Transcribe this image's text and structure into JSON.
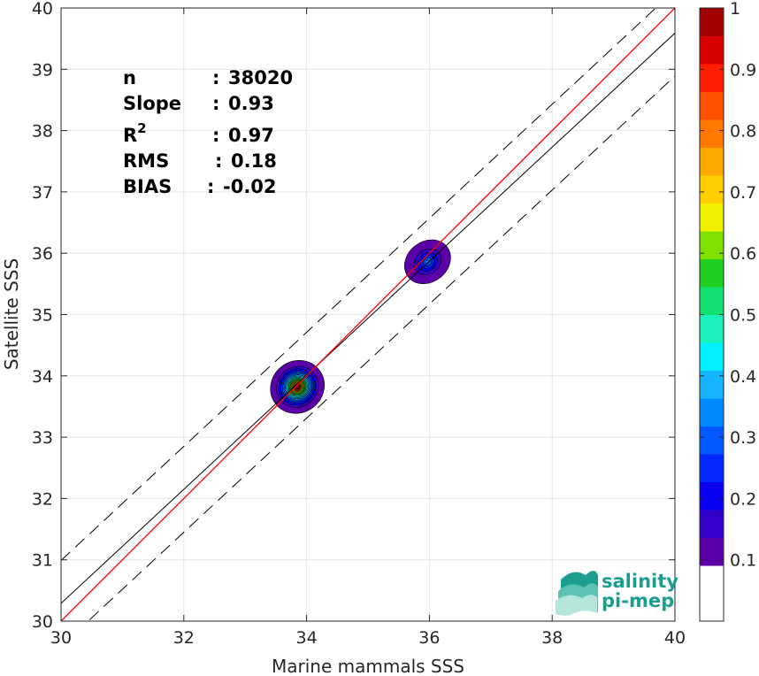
{
  "chart_data": {
    "type": "contour-density-scatter",
    "xlabel": "Marine mammals SSS",
    "ylabel": "Satellite SSS",
    "xlim": [
      30,
      40
    ],
    "ylim": [
      30,
      40
    ],
    "x_ticks": [
      "30",
      "32",
      "34",
      "36",
      "38",
      "40"
    ],
    "y_ticks": [
      "30",
      "31",
      "32",
      "33",
      "34",
      "35",
      "36",
      "37",
      "38",
      "39",
      "40"
    ],
    "grid": true,
    "stats": [
      {
        "label": "n",
        "sep": ":",
        "value": "38020"
      },
      {
        "label": "Slope",
        "sep": ":",
        "value": "0.93"
      },
      {
        "label": "R",
        "sup": "2",
        "sep": ":",
        "value": "0.97"
      },
      {
        "label": "RMS",
        "sep": ":",
        "value": "0.18"
      },
      {
        "label": "BIAS",
        "sep": ":",
        "value": "-0.02"
      }
    ],
    "lines": {
      "identity": {
        "slope": 1,
        "intercept": 0,
        "color": "#ff0000"
      },
      "fit": {
        "slope": 0.93,
        "intercept": 2.39,
        "color": "#000000"
      },
      "envelope_offset": 0.7
    },
    "density_clusters": [
      {
        "x": 33.85,
        "y": 33.82,
        "rx": 0.45,
        "ry": 0.42,
        "peak": 1.0
      },
      {
        "x": 35.97,
        "y": 35.86,
        "rx": 0.4,
        "ry": 0.33,
        "peak": 0.3
      }
    ],
    "colorbar": {
      "ticks": [
        "0.1",
        "0.2",
        "0.3",
        "0.4",
        "0.5",
        "0.6",
        "0.7",
        "0.8",
        "0.9",
        "1"
      ],
      "tick_values": [
        0.1,
        0.2,
        0.3,
        0.4,
        0.5,
        0.6,
        0.7,
        0.8,
        0.9,
        1.0
      ],
      "lowest_level_color": "#ffffff",
      "colors": [
        "#5b00a8",
        "#3300c8",
        "#0a00f0",
        "#0028ff",
        "#0058ff",
        "#0088ff",
        "#14b4ff",
        "#00f0ff",
        "#1af0b8",
        "#12e070",
        "#20d020",
        "#80e000",
        "#f0f000",
        "#ffd000",
        "#ffa800",
        "#ff7800",
        "#ff5000",
        "#ff1e00",
        "#d80000",
        "#a00000"
      ]
    },
    "logo": {
      "line1": "salinity",
      "line2": "pi-mep",
      "color": "#1b9e8f"
    }
  }
}
